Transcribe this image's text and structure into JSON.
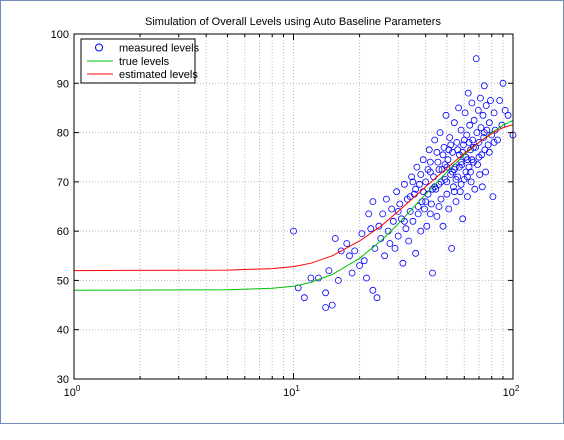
{
  "chart_data": {
    "type": "scatter",
    "title": "Simulation of Overall Levels using Auto Baseline Parameters",
    "xlabel": "",
    "ylabel": "",
    "xscale": "log",
    "xlim": [
      1,
      100
    ],
    "ylim": [
      30,
      100
    ],
    "grid": true,
    "legend_position": "top-left",
    "x_tick_labels": [
      {
        "base": "10",
        "exp": "0",
        "value": 1
      },
      {
        "base": "10",
        "exp": "1",
        "value": 10
      },
      {
        "base": "10",
        "exp": "2",
        "value": 100
      }
    ],
    "y_ticks": [
      30,
      40,
      50,
      60,
      70,
      80,
      90,
      100
    ],
    "series": [
      {
        "name": "measured levels",
        "kind": "markers",
        "marker": "circle",
        "color": "#0000ff",
        "points": [
          [
            10.0,
            60.0
          ],
          [
            10.5,
            48.5
          ],
          [
            11.2,
            46.5
          ],
          [
            12.0,
            50.5
          ],
          [
            13.0,
            50.5
          ],
          [
            14.0,
            44.5
          ],
          [
            14.0,
            47.5
          ],
          [
            14.5,
            52.0
          ],
          [
            15.0,
            45.0
          ],
          [
            15.5,
            58.5
          ],
          [
            16.0,
            50.0
          ],
          [
            16.5,
            56.0
          ],
          [
            17.5,
            57.5
          ],
          [
            18.0,
            55.0
          ],
          [
            18.5,
            51.5
          ],
          [
            19.0,
            56.0
          ],
          [
            20.0,
            53.0
          ],
          [
            20.5,
            59.5
          ],
          [
            21.0,
            54.0
          ],
          [
            21.5,
            50.5
          ],
          [
            22.0,
            63.5
          ],
          [
            22.5,
            60.5
          ],
          [
            23.0,
            48.0
          ],
          [
            23.0,
            66.0
          ],
          [
            23.5,
            56.5
          ],
          [
            24.0,
            46.5
          ],
          [
            24.5,
            61.0
          ],
          [
            25.0,
            58.5
          ],
          [
            25.5,
            63.5
          ],
          [
            26.0,
            55.0
          ],
          [
            26.5,
            66.5
          ],
          [
            27.0,
            60.0
          ],
          [
            27.5,
            57.5
          ],
          [
            28.0,
            64.5
          ],
          [
            28.5,
            62.0
          ],
          [
            29.0,
            56.5
          ],
          [
            29.5,
            68.0
          ],
          [
            30.0,
            59.0
          ],
          [
            30.5,
            65.5
          ],
          [
            31.0,
            62.5
          ],
          [
            31.5,
            53.5
          ],
          [
            32.0,
            69.5
          ],
          [
            32.5,
            60.5
          ],
          [
            33.0,
            66.5
          ],
          [
            33.5,
            58.0
          ],
          [
            34.0,
            64.0
          ],
          [
            34.5,
            71.0
          ],
          [
            35.0,
            62.0
          ],
          [
            35.5,
            67.5
          ],
          [
            36.0,
            55.5
          ],
          [
            36.5,
            73.0
          ],
          [
            37.0,
            63.5
          ],
          [
            37.5,
            69.5
          ],
          [
            38.0,
            60.0
          ],
          [
            38.5,
            66.0
          ],
          [
            39.0,
            74.5
          ],
          [
            39.5,
            64.5
          ],
          [
            40.0,
            70.0
          ],
          [
            40.5,
            61.0
          ],
          [
            41.0,
            67.5
          ],
          [
            41.5,
            76.5
          ],
          [
            42.0,
            72.0
          ],
          [
            42.5,
            65.5
          ],
          [
            43.0,
            51.5
          ],
          [
            43.5,
            71.0
          ],
          [
            44.0,
            78.5
          ],
          [
            44.5,
            68.5
          ],
          [
            45.0,
            63.0
          ],
          [
            45.5,
            74.0
          ],
          [
            46.0,
            69.5
          ],
          [
            46.5,
            80.0
          ],
          [
            47.0,
            66.5
          ],
          [
            47.5,
            72.5
          ],
          [
            48.0,
            61.0
          ],
          [
            48.5,
            77.0
          ],
          [
            49.0,
            70.5
          ],
          [
            49.5,
            83.5
          ],
          [
            50.0,
            67.5
          ],
          [
            50.5,
            74.5
          ],
          [
            51.0,
            64.5
          ],
          [
            51.5,
            79.0
          ],
          [
            52.0,
            71.5
          ],
          [
            52.5,
            56.5
          ],
          [
            53.0,
            76.0
          ],
          [
            53.5,
            69.0
          ],
          [
            54.0,
            82.0
          ],
          [
            54.5,
            73.0
          ],
          [
            55.0,
            66.0
          ],
          [
            55.5,
            78.0
          ],
          [
            56.0,
            71.0
          ],
          [
            56.5,
            85.0
          ],
          [
            57.0,
            75.5
          ],
          [
            57.5,
            68.0
          ],
          [
            58.0,
            80.5
          ],
          [
            58.5,
            73.5
          ],
          [
            59.0,
            62.5
          ],
          [
            59.5,
            77.5
          ],
          [
            60.0,
            70.5
          ],
          [
            60.5,
            84.0
          ],
          [
            61.0,
            75.0
          ],
          [
            61.5,
            79.5
          ],
          [
            62.0,
            67.0
          ],
          [
            62.5,
            88.0
          ],
          [
            63.0,
            73.0
          ],
          [
            63.5,
            81.5
          ],
          [
            64.0,
            76.5
          ],
          [
            64.5,
            70.0
          ],
          [
            65.0,
            86.0
          ],
          [
            65.5,
            78.5
          ],
          [
            66.0,
            74.0
          ],
          [
            66.5,
            82.5
          ],
          [
            67.0,
            68.5
          ],
          [
            67.5,
            77.0
          ],
          [
            68.0,
            95.0
          ],
          [
            68.5,
            80.0
          ],
          [
            69.0,
            73.5
          ],
          [
            69.5,
            84.5
          ],
          [
            70.0,
            78.0
          ],
          [
            70.5,
            71.5
          ],
          [
            71.0,
            87.0
          ],
          [
            71.5,
            81.0
          ],
          [
            72.0,
            75.5
          ],
          [
            72.5,
            69.0
          ],
          [
            73.0,
            83.5
          ],
          [
            73.5,
            79.0
          ],
          [
            74.0,
            89.5
          ],
          [
            74.5,
            76.5
          ],
          [
            75.0,
            72.0
          ],
          [
            75.5,
            85.5
          ],
          [
            76.0,
            80.5
          ],
          [
            77.0,
            77.5
          ],
          [
            78.0,
            82.0
          ],
          [
            79.0,
            86.5
          ],
          [
            80.0,
            79.5
          ],
          [
            81.0,
            67.0
          ],
          [
            82.0,
            84.0
          ],
          [
            83.0,
            80.5
          ],
          [
            85.0,
            78.5
          ],
          [
            87.0,
            86.5
          ],
          [
            89.0,
            81.5
          ],
          [
            90.0,
            90.0
          ],
          [
            92.0,
            84.5
          ],
          [
            95.0,
            83.5
          ],
          [
            100.0,
            79.5
          ],
          [
            36.0,
            68.5
          ],
          [
            38.0,
            71.5
          ],
          [
            40.0,
            66.0
          ],
          [
            42.0,
            74.0
          ],
          [
            44.0,
            69.0
          ],
          [
            46.0,
            72.5
          ],
          [
            48.0,
            75.5
          ],
          [
            50.0,
            70.0
          ],
          [
            52.0,
            77.5
          ],
          [
            54.0,
            72.5
          ],
          [
            56.0,
            76.5
          ],
          [
            58.0,
            69.5
          ],
          [
            60.0,
            78.5
          ],
          [
            62.0,
            74.5
          ],
          [
            64.0,
            72.0
          ],
          [
            34.0,
            67.0
          ],
          [
            37.0,
            65.0
          ],
          [
            41.0,
            72.5
          ],
          [
            43.0,
            68.5
          ],
          [
            45.0,
            76.0
          ],
          [
            47.0,
            70.0
          ],
          [
            49.0,
            73.5
          ],
          [
            51.0,
            76.5
          ],
          [
            53.0,
            72.0
          ],
          [
            55.0,
            70.5
          ],
          [
            57.0,
            73.0
          ],
          [
            59.0,
            76.0
          ],
          [
            61.0,
            72.0
          ],
          [
            63.0,
            78.0
          ],
          [
            65.0,
            74.5
          ],
          [
            30.0,
            64.0
          ],
          [
            32.0,
            62.0
          ],
          [
            35.0,
            70.0
          ],
          [
            39.0,
            68.0
          ],
          [
            42.0,
            63.5
          ],
          [
            46.0,
            65.0
          ],
          [
            50.0,
            73.0
          ],
          [
            54.0,
            68.0
          ],
          [
            58.0,
            74.0
          ],
          [
            62.0,
            71.0
          ],
          [
            66.0,
            77.0
          ],
          [
            70.0,
            75.0
          ],
          [
            74.0,
            80.0
          ],
          [
            78.0,
            76.0
          ],
          [
            82.0,
            78.0
          ]
        ]
      },
      {
        "name": "true levels",
        "kind": "line",
        "color": "#00c000",
        "points": [
          [
            1,
            48.0
          ],
          [
            5,
            48.1
          ],
          [
            8,
            48.4
          ],
          [
            10,
            48.8
          ],
          [
            12,
            49.6
          ],
          [
            15,
            51.2
          ],
          [
            20,
            54.5
          ],
          [
            25,
            58.0
          ],
          [
            30,
            61.5
          ],
          [
            40,
            67.5
          ],
          [
            50,
            72.0
          ],
          [
            60,
            75.5
          ],
          [
            70,
            78.0
          ],
          [
            80,
            80.0
          ],
          [
            90,
            81.5
          ],
          [
            100,
            82.5
          ]
        ]
      },
      {
        "name": "estimated levels",
        "kind": "line",
        "color": "#ff0000",
        "points": [
          [
            1,
            52.0
          ],
          [
            5,
            52.1
          ],
          [
            8,
            52.4
          ],
          [
            10,
            52.8
          ],
          [
            12,
            53.5
          ],
          [
            15,
            55.0
          ],
          [
            20,
            58.0
          ],
          [
            25,
            61.0
          ],
          [
            30,
            64.0
          ],
          [
            40,
            69.0
          ],
          [
            50,
            72.8
          ],
          [
            60,
            75.8
          ],
          [
            70,
            78.0
          ],
          [
            80,
            79.8
          ],
          [
            90,
            81.0
          ],
          [
            100,
            81.6
          ]
        ]
      }
    ]
  }
}
